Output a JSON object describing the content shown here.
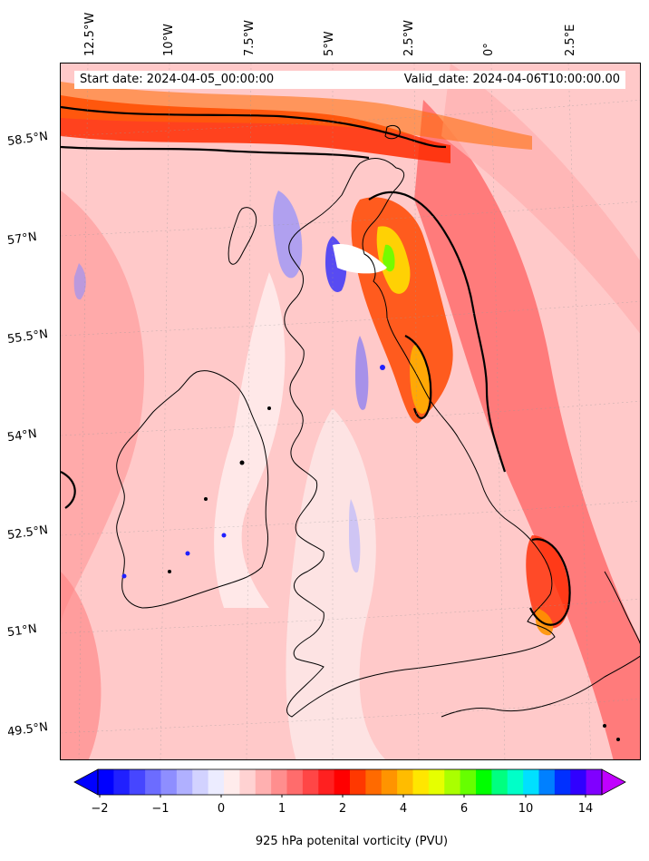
{
  "header": {
    "start_date": "Start date: 2024-04-05_00:00:00",
    "valid_date": "Valid_date: 2024-04-06T10:00:00.00"
  },
  "axes": {
    "lon_labels": [
      "12.5°W",
      "10°W",
      "7.5°W",
      "5°W",
      "2.5°W",
      "0°",
      "2.5°E"
    ],
    "lat_labels": [
      "58.5°N",
      "57°N",
      "55.5°N",
      "54°N",
      "52.5°N",
      "51°N",
      "49.5°N"
    ]
  },
  "colorbar": {
    "title": "925 hPa potenital vorticity (PVU)",
    "tick_labels": [
      "−2",
      "−1",
      "0",
      "1",
      "2",
      "4",
      "6",
      "10",
      "14"
    ],
    "colors": [
      "#0000ff",
      "#2020ff",
      "#4646ff",
      "#6c6cff",
      "#8e8eff",
      "#b0b0ff",
      "#d2d2ff",
      "#ececff",
      "#ffecec",
      "#ffd2d2",
      "#ffb0b0",
      "#ff8e8e",
      "#ff6c6c",
      "#ff4646",
      "#ff2020",
      "#ff0000",
      "#ff3800",
      "#ff6a00",
      "#ff9400",
      "#ffbc00",
      "#ffe600",
      "#e6ff00",
      "#aaff00",
      "#66ff00",
      "#00ff00",
      "#00ff80",
      "#00ffc8",
      "#00e0ff",
      "#0080ff",
      "#0030ff",
      "#3000ff",
      "#8000ff"
    ],
    "under_color": "#0000ff",
    "over_color": "#c000ff"
  }
}
